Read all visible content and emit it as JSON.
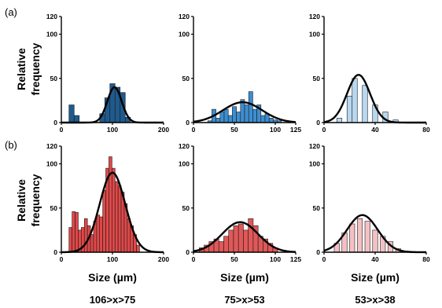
{
  "figure": {
    "panel_labels": [
      "(a)",
      "(b)"
    ],
    "ylabel_line1": "Relative",
    "ylabel_line2": "frequency",
    "xlabel": "Size (µm)",
    "range_labels": [
      "106>x>75",
      "75>x>53",
      "53>x>38"
    ]
  },
  "chart_data": [
    {
      "type": "bar",
      "panel": "a",
      "column": 1,
      "color": "#1f5a8c",
      "xlim": [
        0,
        200
      ],
      "xticks": [
        0,
        100,
        200
      ],
      "ylim": [
        0,
        120
      ],
      "yticks": [
        0,
        50,
        100,
        120
      ],
      "bin_width": 10,
      "bars": [
        {
          "x": 20,
          "y": 20
        },
        {
          "x": 30,
          "y": 8
        },
        {
          "x": 80,
          "y": 10
        },
        {
          "x": 90,
          "y": 28
        },
        {
          "x": 100,
          "y": 44
        },
        {
          "x": 110,
          "y": 40
        },
        {
          "x": 120,
          "y": 34
        },
        {
          "x": 130,
          "y": 6
        }
      ],
      "fit": {
        "mean": 104,
        "sd": 14,
        "peak": 40
      }
    },
    {
      "type": "bar",
      "panel": "a",
      "column": 2,
      "color": "#3d8ed0",
      "xlim": [
        0,
        125
      ],
      "xticks": [
        0,
        50,
        100,
        125
      ],
      "ylim": [
        0,
        120
      ],
      "yticks": [
        0,
        50,
        100,
        120
      ],
      "bin_width": 5,
      "bars": [
        {
          "x": 20,
          "y": 2
        },
        {
          "x": 25,
          "y": 15
        },
        {
          "x": 30,
          "y": 5
        },
        {
          "x": 35,
          "y": 12
        },
        {
          "x": 40,
          "y": 15
        },
        {
          "x": 45,
          "y": 8
        },
        {
          "x": 50,
          "y": 18
        },
        {
          "x": 55,
          "y": 12
        },
        {
          "x": 60,
          "y": 26
        },
        {
          "x": 65,
          "y": 20
        },
        {
          "x": 70,
          "y": 35
        },
        {
          "x": 75,
          "y": 15
        },
        {
          "x": 80,
          "y": 20
        },
        {
          "x": 85,
          "y": 8
        },
        {
          "x": 90,
          "y": 10
        },
        {
          "x": 95,
          "y": 5
        },
        {
          "x": 100,
          "y": 3
        },
        {
          "x": 105,
          "y": 2
        }
      ],
      "fit": {
        "mean": 60,
        "sd": 24,
        "peak": 23
      }
    },
    {
      "type": "bar",
      "panel": "a",
      "column": 3,
      "color": "#b8d8f0",
      "xlim": [
        0,
        80
      ],
      "xticks": [
        0,
        40,
        80
      ],
      "ylim": [
        0,
        120
      ],
      "yticks": [
        0,
        50,
        100,
        120
      ],
      "bin_width": 4,
      "bars": [
        {
          "x": 12,
          "y": 5
        },
        {
          "x": 20,
          "y": 30
        },
        {
          "x": 24,
          "y": 50
        },
        {
          "x": 32,
          "y": 42
        },
        {
          "x": 40,
          "y": 20
        },
        {
          "x": 48,
          "y": 12
        },
        {
          "x": 56,
          "y": 3
        }
      ],
      "fit": {
        "mean": 27,
        "sd": 9,
        "peak": 54
      }
    },
    {
      "type": "bar",
      "panel": "b",
      "column": 1,
      "color": "#e04848",
      "xlim": [
        0,
        200
      ],
      "xticks": [
        0,
        100,
        200
      ],
      "ylim": [
        0,
        120
      ],
      "yticks": [
        0,
        50,
        100,
        120
      ],
      "bin_width": 6,
      "bars": [
        {
          "x": 18,
          "y": 28
        },
        {
          "x": 24,
          "y": 46
        },
        {
          "x": 30,
          "y": 45
        },
        {
          "x": 36,
          "y": 25
        },
        {
          "x": 42,
          "y": 28
        },
        {
          "x": 48,
          "y": 38
        },
        {
          "x": 54,
          "y": 30
        },
        {
          "x": 60,
          "y": 20
        },
        {
          "x": 66,
          "y": 35
        },
        {
          "x": 72,
          "y": 42
        },
        {
          "x": 78,
          "y": 40
        },
        {
          "x": 84,
          "y": 70
        },
        {
          "x": 90,
          "y": 95
        },
        {
          "x": 96,
          "y": 108
        },
        {
          "x": 102,
          "y": 95
        },
        {
          "x": 108,
          "y": 80
        },
        {
          "x": 114,
          "y": 75
        },
        {
          "x": 120,
          "y": 68
        },
        {
          "x": 126,
          "y": 55
        },
        {
          "x": 132,
          "y": 38
        },
        {
          "x": 138,
          "y": 30
        },
        {
          "x": 144,
          "y": 20
        },
        {
          "x": 150,
          "y": 8
        }
      ],
      "fit": {
        "mean": 100,
        "sd": 25,
        "peak": 90
      }
    },
    {
      "type": "bar",
      "panel": "b",
      "column": 2,
      "color": "#e05858",
      "xlim": [
        0,
        125
      ],
      "xticks": [
        0,
        50,
        100,
        125
      ],
      "ylim": [
        0,
        120
      ],
      "yticks": [
        0,
        50,
        100,
        120
      ],
      "bin_width": 6,
      "bars": [
        {
          "x": 10,
          "y": 5
        },
        {
          "x": 16,
          "y": 8
        },
        {
          "x": 22,
          "y": 12
        },
        {
          "x": 28,
          "y": 15
        },
        {
          "x": 34,
          "y": 12
        },
        {
          "x": 40,
          "y": 18
        },
        {
          "x": 46,
          "y": 25
        },
        {
          "x": 52,
          "y": 30
        },
        {
          "x": 58,
          "y": 32
        },
        {
          "x": 64,
          "y": 25
        },
        {
          "x": 70,
          "y": 38
        },
        {
          "x": 76,
          "y": 30
        },
        {
          "x": 82,
          "y": 18
        },
        {
          "x": 88,
          "y": 15
        },
        {
          "x": 94,
          "y": 10
        },
        {
          "x": 100,
          "y": 5
        }
      ],
      "fit": {
        "mean": 57,
        "sd": 22,
        "peak": 34
      }
    },
    {
      "type": "bar",
      "panel": "b",
      "column": 3,
      "color": "#f4c0c4",
      "xlim": [
        0,
        80
      ],
      "xticks": [
        0,
        40,
        80
      ],
      "ylim": [
        0,
        120
      ],
      "yticks": [
        0,
        50,
        100,
        120
      ],
      "bin_width": 4,
      "bars": [
        {
          "x": 10,
          "y": 10
        },
        {
          "x": 16,
          "y": 22
        },
        {
          "x": 22,
          "y": 32
        },
        {
          "x": 28,
          "y": 38
        },
        {
          "x": 34,
          "y": 35
        },
        {
          "x": 40,
          "y": 25
        },
        {
          "x": 46,
          "y": 18
        },
        {
          "x": 52,
          "y": 12
        },
        {
          "x": 58,
          "y": 4
        }
      ],
      "fit": {
        "mean": 30,
        "sd": 12,
        "peak": 42
      }
    }
  ]
}
